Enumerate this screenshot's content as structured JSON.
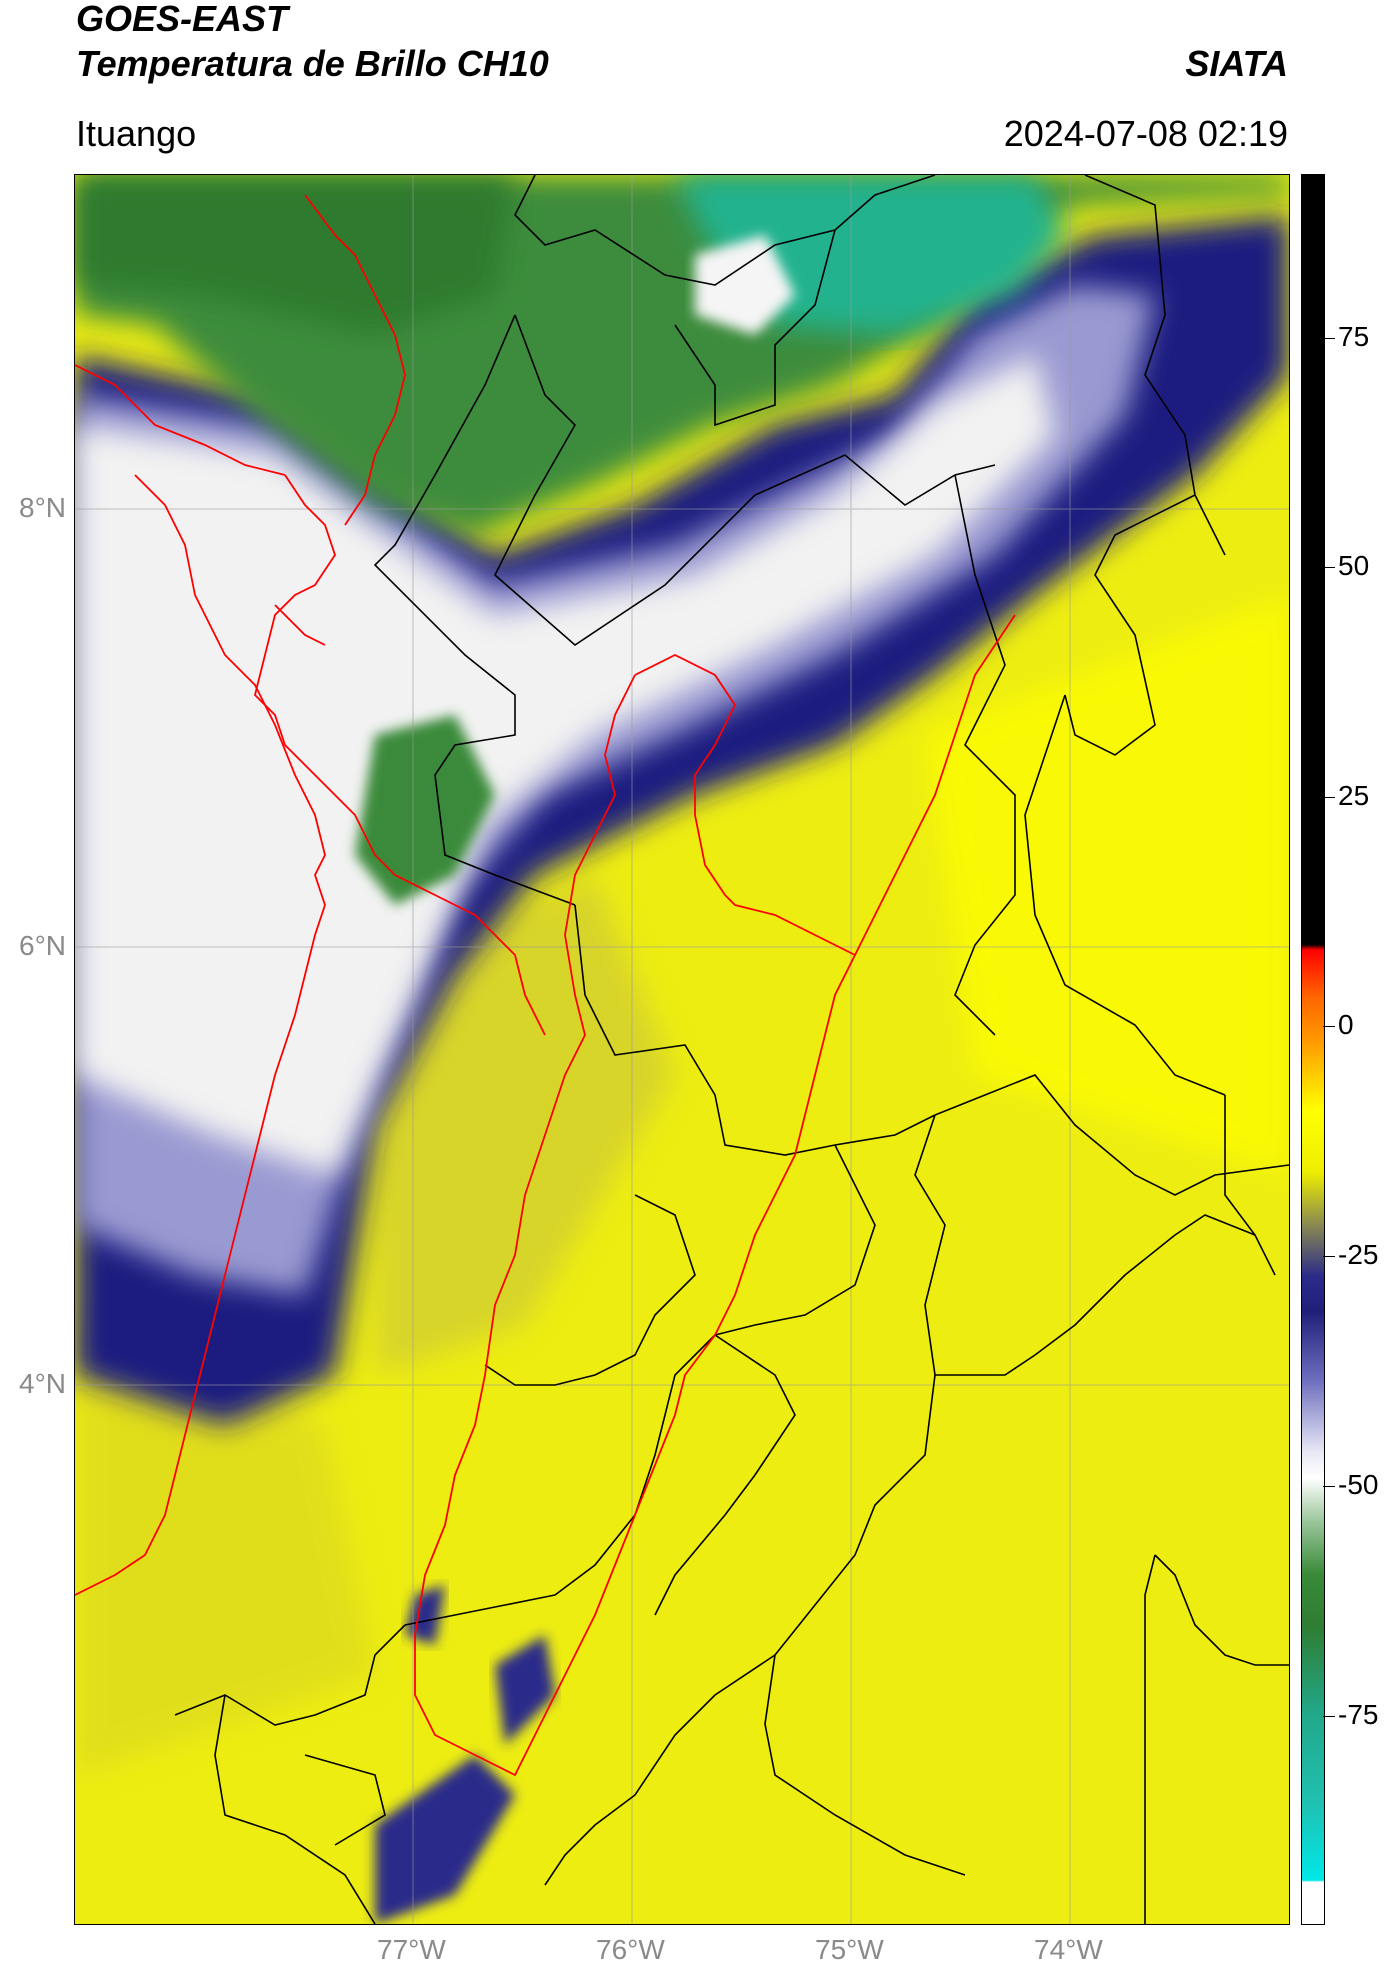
{
  "header": {
    "satellite": "GOES-EAST",
    "product": "Temperatura de Brillo CH10",
    "brand": "SIATA",
    "location": "Ituango",
    "timestamp": "2024-07-08 02:19"
  },
  "axes": {
    "latitude_labels": [
      "8°N",
      "6°N",
      "4°N"
    ],
    "longitude_labels": [
      "77°W",
      "76°W",
      "75°W",
      "74°W"
    ]
  },
  "colorbar": {
    "ticks": [
      "75",
      "50",
      "25",
      "0",
      "-25",
      "-50",
      "-75"
    ]
  },
  "colors": {
    "warm_yellow": "#f2f20c",
    "cold_navy": "#1a1a7a",
    "cloud_white": "#f0f0f0",
    "deep_green": "#2e7d32",
    "teal": "#1fae8c",
    "outline_red": "#ff0000",
    "outline_black": "#000000"
  }
}
